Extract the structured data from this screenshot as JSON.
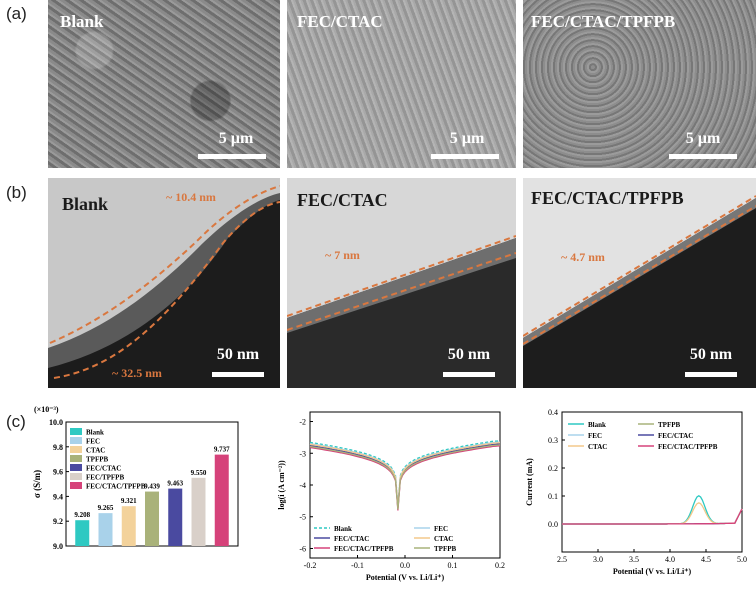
{
  "panels": {
    "a": {
      "label": "(a)",
      "images": [
        {
          "title": "Blank",
          "scale": "5 µm"
        },
        {
          "title": "FEC/CTAC",
          "scale": "5 µm"
        },
        {
          "title": "FEC/CTAC/TPFPB",
          "scale": "5 µm"
        }
      ]
    },
    "b": {
      "label": "(b)",
      "images": [
        {
          "title": "Blank",
          "scale": "50 nm",
          "thickness": [
            "~ 10.4 nm",
            "~ 32.5 nm"
          ]
        },
        {
          "title": "FEC/CTAC",
          "scale": "50 nm",
          "thickness": [
            "~ 7 nm"
          ]
        },
        {
          "title": "FEC/CTAC/TPFPB",
          "scale": "50 nm",
          "thickness": [
            "~ 4.7 nm"
          ]
        }
      ]
    },
    "c": {
      "label": "(c)"
    }
  },
  "chart_data": [
    {
      "type": "bar",
      "exponent_label": "(×10⁻³)",
      "ylabel": "σ (S/m)",
      "ylim": [
        9.0,
        10.0
      ],
      "yticks": [
        "9.0",
        "9.2",
        "9.4",
        "9.6",
        "9.8",
        "10.0"
      ],
      "categories": [
        "Blank",
        "FEC",
        "CTAC",
        "TPFPB",
        "FEC/CTAC",
        "FEC/TPFPB",
        "FEC/CTAC/TPFPB"
      ],
      "values": [
        9.208,
        9.265,
        9.321,
        9.439,
        9.463,
        9.55,
        9.737
      ],
      "value_labels": [
        "9.208",
        "9.265",
        "9.321",
        "9.439",
        "9.463",
        "9.550",
        "9.737"
      ],
      "colors": [
        "#2ec9c2",
        "#a9d2ea",
        "#f3d29b",
        "#a9b27a",
        "#4a4aa0",
        "#d9d0c9",
        "#d6427a"
      ],
      "legend_position": "top-left"
    },
    {
      "type": "line",
      "xlabel": "Potential (V vs. Li/Li⁺)",
      "ylabel": "log(i (A cm⁻²))",
      "xlim": [
        -0.2,
        0.2
      ],
      "ylim": [
        -6.3,
        -1.7
      ],
      "xticks": [
        "-0.2",
        "-0.1",
        "0.0",
        "0.1",
        "0.2"
      ],
      "yticks": [
        "-2",
        "-3",
        "-4",
        "-5",
        "-6"
      ],
      "series": [
        {
          "name": "Blank",
          "color": "#2ec9c2",
          "dashed": true,
          "offset": -0.06
        },
        {
          "name": "FEC",
          "color": "#a9d2ea",
          "dashed": false,
          "offset": -0.02
        },
        {
          "name": "FEC/CTAC",
          "color": "#4a4aa0",
          "dashed": false,
          "offset": 0.04
        },
        {
          "name": "CTAC",
          "color": "#f3c98b",
          "dashed": false,
          "offset": 0.0
        },
        {
          "name": "FEC/CTAC/TPFPB",
          "color": "#d6427a",
          "dashed": false,
          "offset": 0.1
        },
        {
          "name": "TPFPB",
          "color": "#a9b27a",
          "dashed": false,
          "offset": 0.07
        }
      ],
      "legend_position": "bottom"
    },
    {
      "type": "line",
      "xlabel": "Potential (V vs. Li/Li⁺)",
      "ylabel": "Current (mA)",
      "xlim": [
        2.5,
        5.0
      ],
      "ylim": [
        -0.1,
        0.4
      ],
      "xticks": [
        "2.5",
        "3.0",
        "3.5",
        "4.0",
        "4.5",
        "5.0"
      ],
      "yticks": [
        "0.0",
        "0.1",
        "0.2",
        "0.3",
        "0.4"
      ],
      "series": [
        {
          "name": "Blank",
          "color": "#2ec9c2",
          "peak": 0.1
        },
        {
          "name": "TPFPB",
          "color": "#a9b27a",
          "peak": 0.0
        },
        {
          "name": "FEC",
          "color": "#a9d2ea",
          "peak": 0.0
        },
        {
          "name": "FEC/CTAC",
          "color": "#4a4aa0",
          "peak": 0.0
        },
        {
          "name": "CTAC",
          "color": "#f3c98b",
          "peak": 0.075
        },
        {
          "name": "FEC/CTAC/TPFPB",
          "color": "#d6427a",
          "peak": 0.0
        }
      ],
      "legend_position": "top"
    }
  ]
}
